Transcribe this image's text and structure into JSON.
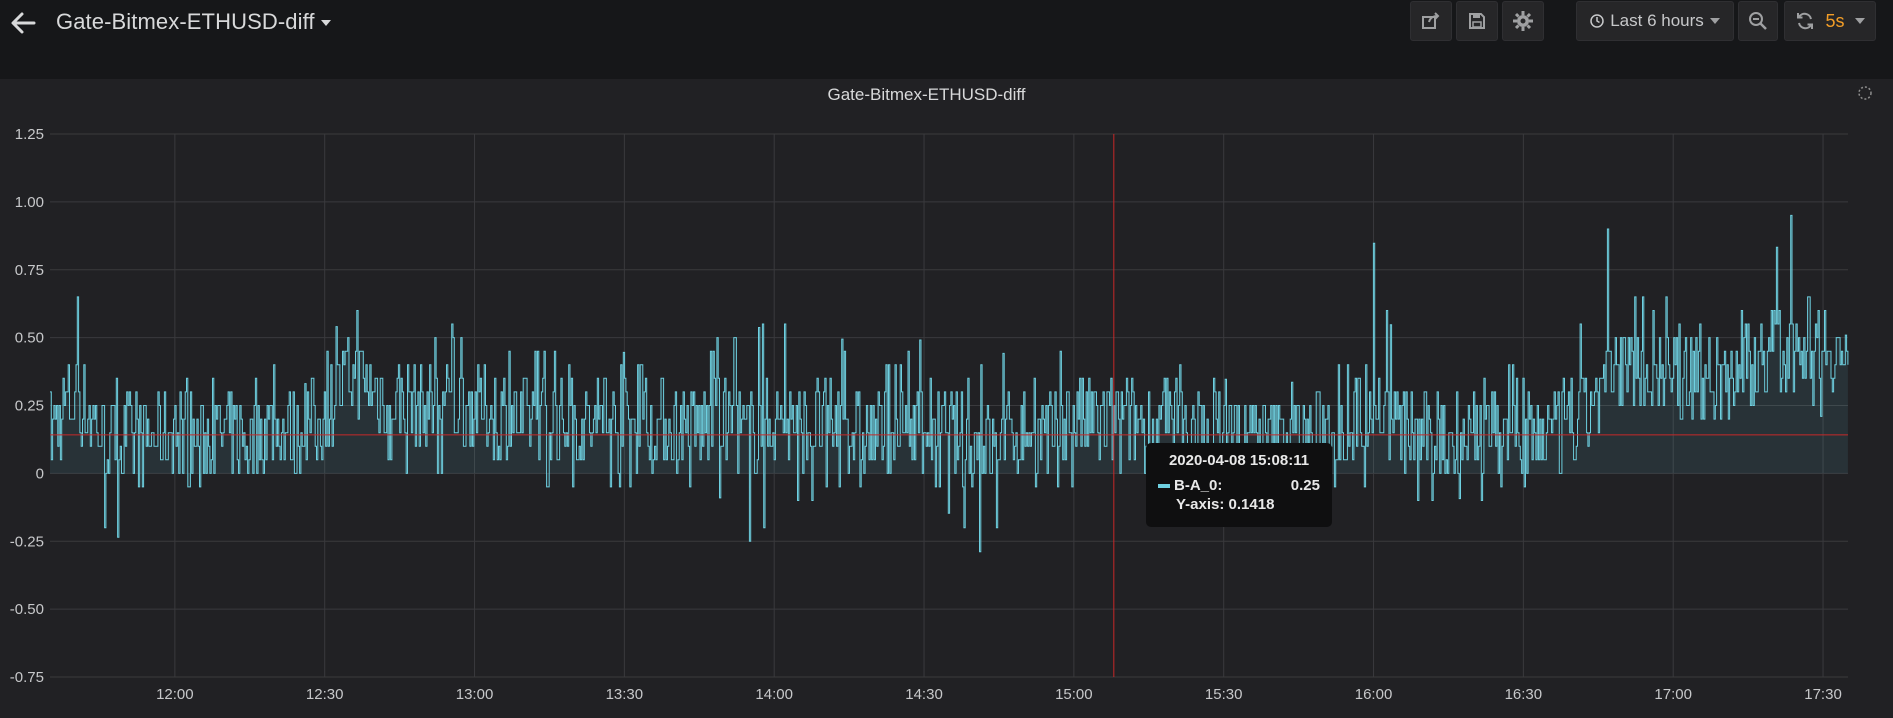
{
  "header": {
    "title": "Gate-Bitmex-ETHUSD-diff",
    "time_range_label": "Last 6 hours",
    "refresh_interval": "5s"
  },
  "icons": [
    "back-arrow-icon",
    "share-icon",
    "save-icon",
    "gear-icon",
    "clock-icon",
    "zoom-out-icon",
    "refresh-icon",
    "caret-down-icon",
    "loading-spinner-icon"
  ],
  "panel": {
    "title": "Gate-Bitmex-ETHUSD-diff"
  },
  "tooltip": {
    "time": "2020-04-08 15:08:11",
    "series_name": "B-A_0:",
    "value": "0.25",
    "y_axis_text": "Y-axis: 0.1418"
  },
  "colors": {
    "series": "#6ed0e0",
    "threshold_line": "#c62828",
    "accent_interval": "#f29d27",
    "panel_bg": "#212124"
  },
  "chart_data": {
    "type": "line",
    "title": "Gate-Bitmex-ETHUSD-diff",
    "xlabel": "",
    "ylabel": "",
    "ylim": [
      -0.75,
      1.25
    ],
    "y_ticks": [
      "1.25",
      "1.00",
      "0.75",
      "0.50",
      "0.25",
      "0",
      "-0.25",
      "-0.50",
      "-0.75"
    ],
    "x_ticks": [
      "12:00",
      "12:30",
      "13:00",
      "13:30",
      "14:00",
      "14:30",
      "15:00",
      "15:30",
      "16:00",
      "16:30",
      "17:00",
      "17:30"
    ],
    "x_range": [
      "11:35",
      "17:35"
    ],
    "grid": true,
    "fill_below": true,
    "hover_time": "15:08",
    "threshold_value": 0.1418,
    "series": [
      {
        "name": "B-A_0",
        "x": [
          "11:35",
          "11:40",
          "11:45",
          "11:50",
          "11:55",
          "12:00",
          "12:05",
          "12:10",
          "12:15",
          "12:20",
          "12:25",
          "12:30",
          "12:35",
          "12:40",
          "12:45",
          "12:50",
          "12:55",
          "13:00",
          "13:05",
          "13:10",
          "13:15",
          "13:20",
          "13:25",
          "13:30",
          "13:35",
          "13:40",
          "13:45",
          "13:50",
          "13:55",
          "14:00",
          "14:05",
          "14:10",
          "14:15",
          "14:20",
          "14:25",
          "14:30",
          "14:35",
          "14:40",
          "14:45",
          "14:50",
          "14:55",
          "15:00",
          "15:05",
          "15:10",
          "15:15",
          "15:20",
          "15:25",
          "15:30",
          "15:35",
          "15:40",
          "15:45",
          "15:50",
          "15:55",
          "16:00",
          "16:05",
          "16:10",
          "16:15",
          "16:20",
          "16:25",
          "16:30",
          "16:35",
          "16:40",
          "16:45",
          "16:50",
          "16:55",
          "17:00",
          "17:05",
          "17:10",
          "17:15",
          "17:20",
          "17:25",
          "17:30",
          "17:35"
        ],
        "max": [
          0.35,
          0.7,
          0.45,
          0.35,
          0.3,
          0.45,
          0.3,
          0.4,
          0.35,
          0.45,
          0.3,
          0.45,
          0.65,
          0.6,
          0.55,
          0.5,
          0.55,
          0.55,
          0.5,
          0.45,
          0.5,
          0.4,
          0.35,
          0.45,
          0.4,
          0.45,
          0.4,
          0.55,
          0.5,
          0.6,
          0.5,
          0.6,
          0.45,
          0.4,
          0.45,
          0.5,
          0.4,
          0.4,
          0.45,
          0.4,
          0.35,
          0.6,
          0.5,
          0.45,
          0.4,
          0.4,
          0.4,
          0.35,
          0.3,
          0.3,
          0.35,
          0.4,
          0.45,
          0.85,
          0.4,
          0.35,
          0.3,
          0.35,
          0.45,
          0.4,
          0.35,
          0.4,
          1.1,
          0.7,
          0.65,
          0.65,
          0.55,
          0.55,
          0.65,
          0.8,
          1.05,
          1.0,
          0.45
        ],
        "min": [
          -0.05,
          -0.1,
          -0.2,
          -0.25,
          -0.1,
          -0.05,
          -0.05,
          -0.05,
          -0.05,
          0.0,
          0.0,
          0.05,
          0.05,
          0.05,
          0.0,
          0.0,
          0.0,
          -0.05,
          0.0,
          -0.05,
          -0.05,
          -0.05,
          -0.05,
          -0.05,
          -0.05,
          -0.05,
          -0.05,
          -0.1,
          -0.3,
          -0.2,
          -0.15,
          -0.1,
          -0.1,
          -0.1,
          -0.05,
          -0.05,
          -0.15,
          -0.3,
          -0.25,
          -0.1,
          -0.05,
          -0.05,
          -0.05,
          0.0,
          0.0,
          0.0,
          0.0,
          0.0,
          0.0,
          0.0,
          0.0,
          -0.05,
          -0.1,
          -0.05,
          -0.1,
          -0.15,
          -0.05,
          -0.15,
          -0.05,
          -0.05,
          -0.05,
          -0.5,
          0.0,
          0.15,
          0.15,
          0.15,
          0.2,
          0.15,
          0.2,
          0.25,
          0.3,
          0.2,
          0.3
        ],
        "typical": [
          0.15,
          0.3,
          0.15,
          0.1,
          0.12,
          0.18,
          0.12,
          0.15,
          0.12,
          0.18,
          0.15,
          0.25,
          0.35,
          0.3,
          0.28,
          0.25,
          0.25,
          0.25,
          0.22,
          0.2,
          0.2,
          0.18,
          0.16,
          0.18,
          0.18,
          0.18,
          0.16,
          0.2,
          0.15,
          0.2,
          0.18,
          0.2,
          0.16,
          0.14,
          0.16,
          0.2,
          0.15,
          0.1,
          0.12,
          0.16,
          0.14,
          0.2,
          0.18,
          0.2,
          0.18,
          0.16,
          0.15,
          0.15,
          0.13,
          0.13,
          0.14,
          0.16,
          0.18,
          0.28,
          0.16,
          0.14,
          0.12,
          0.14,
          0.18,
          0.16,
          0.15,
          0.14,
          0.3,
          0.4,
          0.38,
          0.38,
          0.35,
          0.35,
          0.4,
          0.45,
          0.5,
          0.5,
          0.4
        ]
      }
    ]
  }
}
